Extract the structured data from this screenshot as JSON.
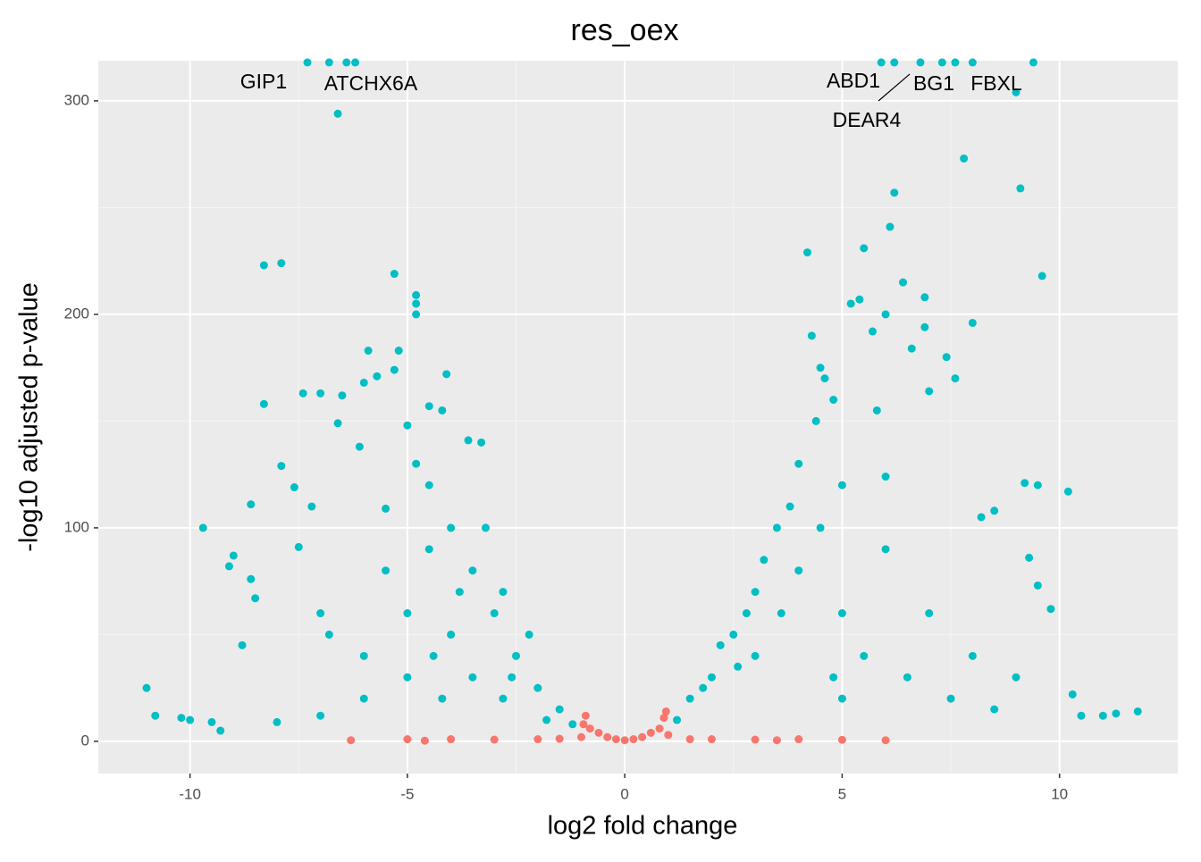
{
  "chart_data": {
    "type": "scatter",
    "title": "res_oex",
    "xlabel": "log2 fold change",
    "ylabel": "-log10 adjusted p-value",
    "xlim": [
      -12.11,
      12.72
    ],
    "ylim": [
      -15.1,
      318.8
    ],
    "xticks": [
      -10,
      -5,
      0,
      5,
      10
    ],
    "yticks": [
      0,
      100,
      200,
      300
    ],
    "grid": true,
    "annotations": [
      "GIP1",
      "ATCHX6A",
      "ABD1",
      "BG1",
      "FBXL",
      "DEAR4"
    ],
    "series": [
      {
        "color": "#F8766D",
        "x": [
          -6.3,
          -5,
          -4,
          -3,
          -2,
          -1.5,
          -1,
          -0.95,
          -0.9,
          -0.8,
          -0.6,
          -0.4,
          -0.2,
          0,
          0.2,
          0.4,
          0.6,
          0.8,
          0.9,
          0.95,
          1,
          1.5,
          2,
          3,
          4,
          5,
          6,
          -4.6,
          3.5
        ],
        "values": [
          0.5,
          1,
          1,
          0.8,
          1,
          1.2,
          2,
          8,
          12,
          6,
          4,
          2,
          1,
          0.5,
          1,
          2,
          4,
          6,
          11,
          14,
          3,
          1,
          1,
          0.8,
          1,
          0.7,
          0.5,
          0.3,
          0.5
        ]
      },
      {
        "color": "#00BFC4",
        "x": [
          -11,
          -10.8,
          -10.2,
          -10,
          -9.7,
          -9.5,
          -9.3,
          -9,
          -9.1,
          -8.8,
          -8.6,
          -8.6,
          -8.5,
          -8.3,
          -8.3,
          -7.9,
          -7.9,
          -7.6,
          -7.4,
          -7.2,
          -7,
          -7,
          -6.6,
          -6.5,
          -6.6,
          -6.1,
          -6,
          -5.9,
          -5.7,
          -5.5,
          -5.3,
          -5.2,
          -5.3,
          -5,
          -4.8,
          -4.5,
          -4.5,
          -4.2,
          -4.1,
          -3.6,
          -3.3,
          -4.8,
          -4.8,
          -4.8,
          -7.5,
          -6.8,
          -6,
          -5.5,
          -5,
          -4.5,
          -4,
          -3.5,
          -3,
          -2.5,
          -2,
          -1.5,
          -1.2,
          -3.2,
          -2.8,
          -2.2,
          -4,
          -5,
          -6,
          -7,
          -8,
          -3.5,
          -2.8,
          -4.2,
          -1.8,
          -6.2,
          -7.3,
          -6.8,
          -6.4,
          -2.6,
          -3.8,
          -4.4,
          1.2,
          1.5,
          2,
          2.5,
          3,
          3.5,
          4,
          2.2,
          2.8,
          3.2,
          1.8,
          3.8,
          4.2,
          4.3,
          4.5,
          4.6,
          4.4,
          4.8,
          5.2,
          5.4,
          5.5,
          5.7,
          5.8,
          6,
          6.1,
          6.2,
          6.4,
          6.6,
          6.9,
          6.9,
          7,
          7.4,
          7.6,
          7.8,
          8,
          8.2,
          8.5,
          9.1,
          9.2,
          9.6,
          9.5,
          10.2,
          9.3,
          9.5,
          9.8,
          10.3,
          10.5,
          11,
          11.3,
          11.8,
          9,
          8,
          7,
          6,
          5,
          4,
          5.5,
          6.5,
          7.5,
          8.5,
          5,
          4.5,
          6,
          3.6,
          2.6,
          4.8,
          6.2,
          6.8,
          7.3,
          7.6,
          8,
          9.4,
          9,
          5.9,
          5,
          3
        ],
        "values": [
          25,
          12,
          11,
          10,
          100,
          9,
          5,
          87,
          82,
          45,
          76,
          111,
          67,
          158,
          223,
          224,
          129,
          119,
          163,
          110,
          163,
          60,
          149,
          162,
          294,
          138,
          168,
          183,
          171,
          109,
          219,
          183,
          174,
          148,
          130,
          157,
          120,
          155,
          172,
          141,
          140,
          209,
          205,
          200,
          91,
          50,
          40,
          80,
          60,
          90,
          100,
          80,
          60,
          40,
          25,
          15,
          8,
          100,
          70,
          50,
          50,
          30,
          20,
          12,
          9,
          30,
          20,
          20,
          10,
          318,
          318,
          318,
          318,
          30,
          70,
          40,
          10,
          20,
          30,
          50,
          70,
          100,
          130,
          45,
          60,
          85,
          25,
          110,
          229,
          190,
          175,
          170,
          150,
          160,
          205,
          207,
          231,
          192,
          155,
          200,
          241,
          257,
          215,
          184,
          208,
          194,
          164,
          180,
          170,
          273,
          196,
          105,
          108,
          259,
          121,
          218,
          120,
          117,
          86,
          73,
          62,
          22,
          12,
          12,
          13,
          14,
          30,
          40,
          60,
          90,
          60,
          80,
          40,
          30,
          20,
          15,
          120,
          100,
          124,
          60,
          35,
          30,
          318,
          318,
          318,
          318,
          318,
          318,
          304,
          318,
          20,
          40
        ]
      }
    ]
  }
}
